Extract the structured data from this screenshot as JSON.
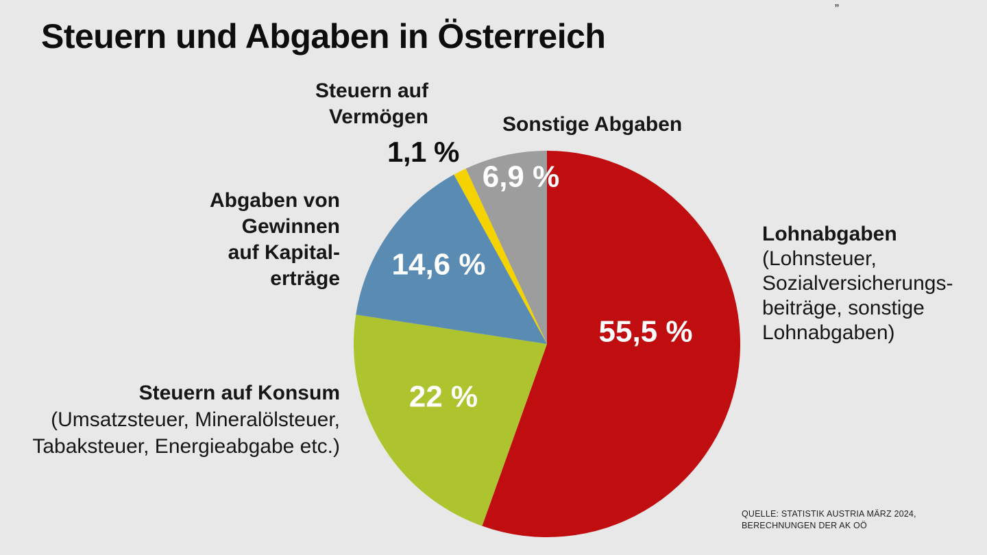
{
  "title": "Steuern und Abgaben in Österreich",
  "corner_mark": "„",
  "chart_data": {
    "type": "pie",
    "title": "Steuern und Abgaben in Österreich",
    "start": "12 o'clock, clockwise",
    "slices": [
      {
        "key": "lohn",
        "name": "Lohnabgaben",
        "detail": [
          "(Lohnsteuer,",
          "Sozialversicherungs-",
          "beiträge, sonstige",
          "Lohnabgaben)"
        ],
        "value": 55.5,
        "label": "55,5 %",
        "color": "#c00d0f"
      },
      {
        "key": "konsum",
        "name": "Steuern auf Konsum",
        "detail": [
          "(Umsatzsteuer, Mineralölsteuer,",
          "Tabaksteuer, Energieabgabe etc.)"
        ],
        "value": 22,
        "label": "22 %",
        "color": "#adc42e"
      },
      {
        "key": "kapital",
        "name_lines": [
          "Abgaben von",
          "Gewinnen",
          "auf Kapital-",
          "erträge"
        ],
        "value": 14.6,
        "label": "14,6 %",
        "color": "#5a8cb3"
      },
      {
        "key": "vermoegen",
        "name_lines": [
          "Steuern auf",
          "Vermögen"
        ],
        "value": 1.1,
        "label": "1,1 %",
        "color": "#f5d300"
      },
      {
        "key": "sonstige",
        "name": "Sonstige Abgaben",
        "value": 6.9,
        "label": "6,9 %",
        "color": "#9d9d9d"
      }
    ]
  },
  "source": {
    "line1": "QUELLE: STATISTIK AUSTRIA MÄRZ 2024,",
    "line2": "BERECHNUNGEN DER AK OÖ"
  }
}
